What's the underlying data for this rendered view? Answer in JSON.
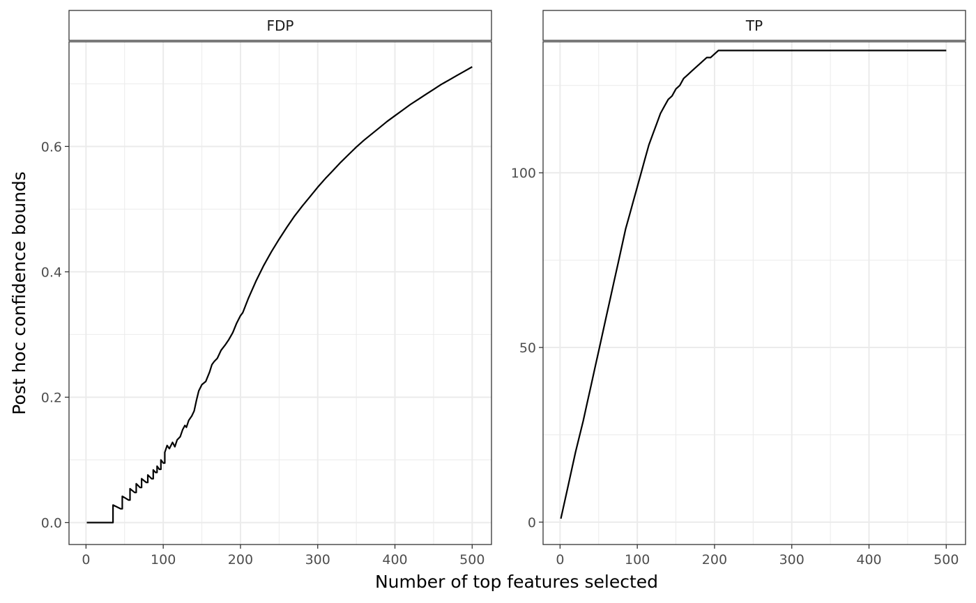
{
  "figure": {
    "ylabel": "Post hoc confidence bounds",
    "xlabel": "Number of top features selected"
  },
  "chart_data": [
    {
      "type": "line",
      "panel": "FDP",
      "xlim": [
        -22,
        525
      ],
      "ylim": [
        -0.035,
        0.767
      ],
      "x_ticks": [
        0,
        100,
        200,
        300,
        400,
        500
      ],
      "x_tick_labels": [
        "0",
        "100",
        "200",
        "300",
        "400",
        "500"
      ],
      "y_ticks": [
        0.0,
        0.2,
        0.4,
        0.6
      ],
      "y_tick_labels": [
        "0.0",
        "0.2",
        "0.4",
        "0.6"
      ],
      "grid": true,
      "series": [
        {
          "x": [
            1,
            33,
            35,
            35,
            45,
            47,
            47,
            55,
            57,
            57,
            63,
            65,
            65,
            70,
            72,
            72,
            78,
            80,
            80,
            85,
            87,
            87,
            90,
            92,
            92,
            95,
            97,
            97,
            100,
            102,
            102,
            105,
            108,
            112,
            115,
            118,
            122,
            125,
            128,
            130,
            133,
            137,
            140,
            143,
            146,
            150,
            155,
            160,
            163,
            166,
            170,
            175,
            180,
            185,
            190,
            195,
            200,
            203,
            210,
            220,
            230,
            240,
            250,
            260,
            270,
            280,
            290,
            300,
            310,
            320,
            330,
            340,
            350,
            360,
            370,
            380,
            390,
            400,
            410,
            420,
            430,
            440,
            450,
            460,
            470,
            480,
            490,
            500
          ],
          "y": [
            0,
            0,
            0,
            0.028,
            0.022,
            0.022,
            0.042,
            0.036,
            0.036,
            0.054,
            0.048,
            0.048,
            0.062,
            0.056,
            0.056,
            0.07,
            0.064,
            0.064,
            0.076,
            0.07,
            0.07,
            0.084,
            0.08,
            0.08,
            0.09,
            0.085,
            0.085,
            0.1,
            0.095,
            0.095,
            0.112,
            0.123,
            0.118,
            0.128,
            0.121,
            0.132,
            0.137,
            0.148,
            0.155,
            0.152,
            0.163,
            0.17,
            0.178,
            0.195,
            0.21,
            0.22,
            0.225,
            0.24,
            0.252,
            0.257,
            0.262,
            0.275,
            0.283,
            0.292,
            0.303,
            0.318,
            0.33,
            0.335,
            0.357,
            0.385,
            0.41,
            0.432,
            0.452,
            0.471,
            0.489,
            0.505,
            0.52,
            0.535,
            0.549,
            0.562,
            0.575,
            0.587,
            0.599,
            0.61,
            0.62,
            0.63,
            0.64,
            0.649,
            0.658,
            0.667,
            0.675,
            0.683,
            0.691,
            0.699,
            0.706,
            0.713,
            0.72,
            0.727
          ]
        }
      ]
    },
    {
      "type": "line",
      "panel": "TP",
      "xlim": [
        -22,
        525
      ],
      "ylim": [
        -6.4,
        137.5
      ],
      "x_ticks": [
        0,
        100,
        200,
        300,
        400,
        500
      ],
      "x_tick_labels": [
        "0",
        "100",
        "200",
        "300",
        "400",
        "500"
      ],
      "y_ticks": [
        0,
        50,
        100
      ],
      "y_tick_labels": [
        "0",
        "50",
        "100"
      ],
      "grid": true,
      "series": [
        {
          "x": [
            1,
            10,
            20,
            30,
            35,
            40,
            45,
            50,
            55,
            60,
            65,
            70,
            75,
            80,
            85,
            90,
            95,
            100,
            105,
            110,
            115,
            120,
            125,
            130,
            135,
            140,
            145,
            150,
            155,
            160,
            165,
            170,
            175,
            180,
            185,
            190,
            195,
            200,
            205,
            220,
            300,
            400,
            500
          ],
          "y": [
            1,
            10,
            20,
            29,
            34,
            39,
            44,
            49,
            54,
            59,
            64,
            69,
            74,
            79,
            84,
            88,
            92,
            96,
            100,
            104,
            108,
            111,
            114,
            117,
            119,
            121,
            122,
            124,
            125,
            127,
            128,
            129,
            130,
            131,
            132,
            133,
            133,
            134,
            135,
            135,
            135,
            135,
            135
          ]
        }
      ]
    }
  ]
}
